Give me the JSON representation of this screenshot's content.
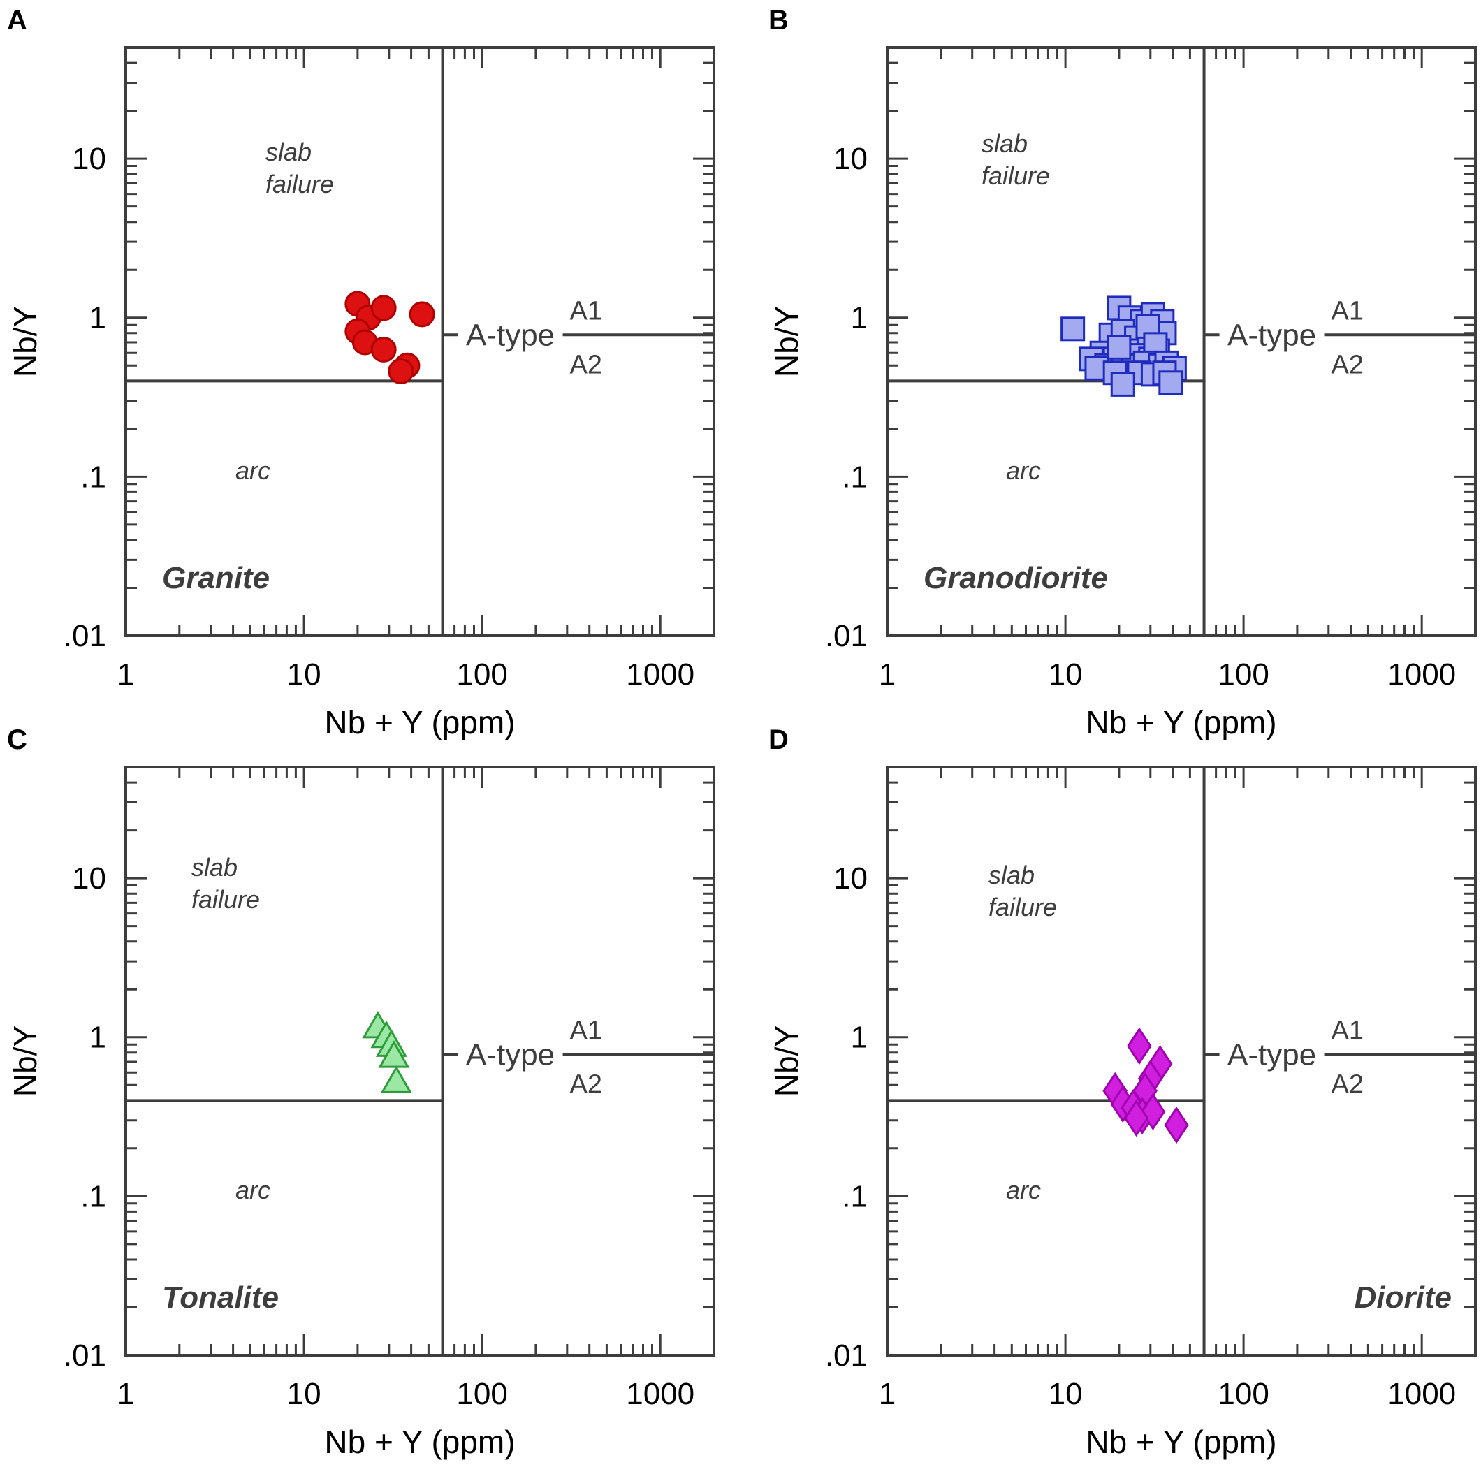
{
  "figure": {
    "colors": {
      "ink": "#3d3d3d",
      "label": "#000000"
    }
  },
  "chart_data": [
    {
      "panel_label": "A",
      "type": "scatter",
      "xlabel": "Nb + Y (ppm)",
      "ylabel": "Nb/Y",
      "xscale": "log",
      "yscale": "log",
      "xlim": [
        1,
        2000
      ],
      "ylim": [
        0.01,
        50
      ],
      "x_ticks": [
        1,
        10,
        100,
        1000
      ],
      "x_tick_labels": [
        "1",
        "10",
        "100",
        "1000"
      ],
      "y_ticks": [
        0.01,
        0.1,
        1,
        10
      ],
      "y_tick_labels": [
        ".01",
        ".1",
        "1",
        "10"
      ],
      "boundaries": {
        "vertical_x": 60,
        "horizontal_y": 0.4,
        "a_type_y": 0.78,
        "a_type_label": "A-type",
        "a_type_upper": "A1",
        "a_type_lower": "A2"
      },
      "region_labels": {
        "upper": [
          "slab",
          "failure"
        ],
        "lower": "arc"
      },
      "rock_label": "Granite",
      "rock_label_align": "left",
      "marker": "circle",
      "fill": "#dd1111",
      "stroke": "#b00000",
      "points": [
        [
          20,
          1.22
        ],
        [
          23,
          1.0
        ],
        [
          28,
          1.15
        ],
        [
          20,
          0.82
        ],
        [
          22,
          0.7
        ],
        [
          28,
          0.63
        ],
        [
          46,
          1.05
        ],
        [
          38,
          0.5
        ],
        [
          35,
          0.46
        ]
      ]
    },
    {
      "panel_label": "B",
      "type": "scatter",
      "xlabel": "Nb + Y (ppm)",
      "ylabel": "Nb/Y",
      "xscale": "log",
      "yscale": "log",
      "xlim": [
        1,
        2000
      ],
      "ylim": [
        0.01,
        50
      ],
      "x_ticks": [
        1,
        10,
        100,
        1000
      ],
      "x_tick_labels": [
        "1",
        "10",
        "100",
        "1000"
      ],
      "y_ticks": [
        0.01,
        0.1,
        1,
        10
      ],
      "y_tick_labels": [
        ".01",
        ".1",
        "1",
        "10"
      ],
      "boundaries": {
        "vertical_x": 60,
        "horizontal_y": 0.4,
        "a_type_y": 0.78,
        "a_type_label": "A-type",
        "a_type_upper": "A1",
        "a_type_lower": "A2"
      },
      "region_labels": {
        "upper": [
          "slab",
          "failure"
        ],
        "lower": "arc"
      },
      "rock_label": "Granodiorite",
      "rock_label_align": "left",
      "marker": "square",
      "fill": "#a4aaf0",
      "stroke": "#1f2bbd",
      "points": [
        [
          11,
          0.85
        ],
        [
          20,
          1.15
        ],
        [
          23,
          1.0
        ],
        [
          27,
          0.95
        ],
        [
          31,
          1.05
        ],
        [
          35,
          0.95
        ],
        [
          36,
          0.8
        ],
        [
          18,
          0.78
        ],
        [
          21,
          0.82
        ],
        [
          25,
          0.75
        ],
        [
          29,
          0.88
        ],
        [
          33,
          0.62
        ],
        [
          16,
          0.6
        ],
        [
          19,
          0.55
        ],
        [
          22,
          0.62
        ],
        [
          26,
          0.58
        ],
        [
          30,
          0.55
        ],
        [
          32,
          0.68
        ],
        [
          14,
          0.55
        ],
        [
          17,
          0.5
        ],
        [
          21,
          0.48
        ],
        [
          24,
          0.5
        ],
        [
          28,
          0.52
        ],
        [
          34,
          0.5
        ],
        [
          37,
          0.52
        ],
        [
          41,
          0.48
        ],
        [
          15,
          0.48
        ],
        [
          19,
          0.45
        ],
        [
          26,
          0.45
        ],
        [
          31,
          0.44
        ],
        [
          36,
          0.45
        ],
        [
          21,
          0.38
        ],
        [
          39,
          0.39
        ],
        [
          20,
          0.65
        ]
      ]
    },
    {
      "panel_label": "C",
      "type": "scatter",
      "xlabel": "Nb + Y (ppm)",
      "ylabel": "Nb/Y",
      "xscale": "log",
      "yscale": "log",
      "xlim": [
        1,
        2000
      ],
      "ylim": [
        0.01,
        50
      ],
      "x_ticks": [
        1,
        10,
        100,
        1000
      ],
      "x_tick_labels": [
        "1",
        "10",
        "100",
        "1000"
      ],
      "y_ticks": [
        0.01,
        0.1,
        1,
        10
      ],
      "y_tick_labels": [
        ".01",
        ".1",
        "1",
        "10"
      ],
      "boundaries": {
        "vertical_x": 60,
        "horizontal_y": 0.4,
        "a_type_y": 0.78,
        "a_type_label": "A-type",
        "a_type_upper": "A1",
        "a_type_lower": "A2"
      },
      "region_labels": {
        "upper": [
          "slab",
          "failure"
        ],
        "lower": "arc"
      },
      "rock_label": "Tonalite",
      "rock_label_align": "left",
      "marker": "triangle",
      "fill": "#9ae8a4",
      "stroke": "#2f9c3b",
      "points": [
        [
          26,
          1.15
        ],
        [
          29,
          1.0
        ],
        [
          31,
          0.88
        ],
        [
          32,
          0.75
        ],
        [
          33,
          0.52
        ]
      ]
    },
    {
      "panel_label": "D",
      "type": "scatter",
      "xlabel": "Nb + Y (ppm)",
      "ylabel": "Nb/Y",
      "xscale": "log",
      "yscale": "log",
      "xlim": [
        1,
        2000
      ],
      "ylim": [
        0.01,
        50
      ],
      "x_ticks": [
        1,
        10,
        100,
        1000
      ],
      "x_tick_labels": [
        "1",
        "10",
        "100",
        "1000"
      ],
      "y_ticks": [
        0.01,
        0.1,
        1,
        10
      ],
      "y_tick_labels": [
        ".01",
        ".1",
        "1",
        "10"
      ],
      "boundaries": {
        "vertical_x": 60,
        "horizontal_y": 0.4,
        "a_type_y": 0.78,
        "a_type_label": "A-type",
        "a_type_upper": "A1",
        "a_type_lower": "A2"
      },
      "region_labels": {
        "upper": [
          "slab",
          "failure"
        ],
        "lower": "arc"
      },
      "rock_label": "Diorite",
      "rock_label_align": "right",
      "marker": "diamond",
      "fill": "#d11fe0",
      "stroke": "#a000b0",
      "points": [
        [
          26,
          0.88
        ],
        [
          34,
          0.68
        ],
        [
          30,
          0.55
        ],
        [
          28,
          0.46
        ],
        [
          19,
          0.46
        ],
        [
          21,
          0.38
        ],
        [
          24,
          0.36
        ],
        [
          27,
          0.32
        ],
        [
          31,
          0.34
        ],
        [
          42,
          0.28
        ],
        [
          25,
          0.31
        ]
      ]
    }
  ]
}
